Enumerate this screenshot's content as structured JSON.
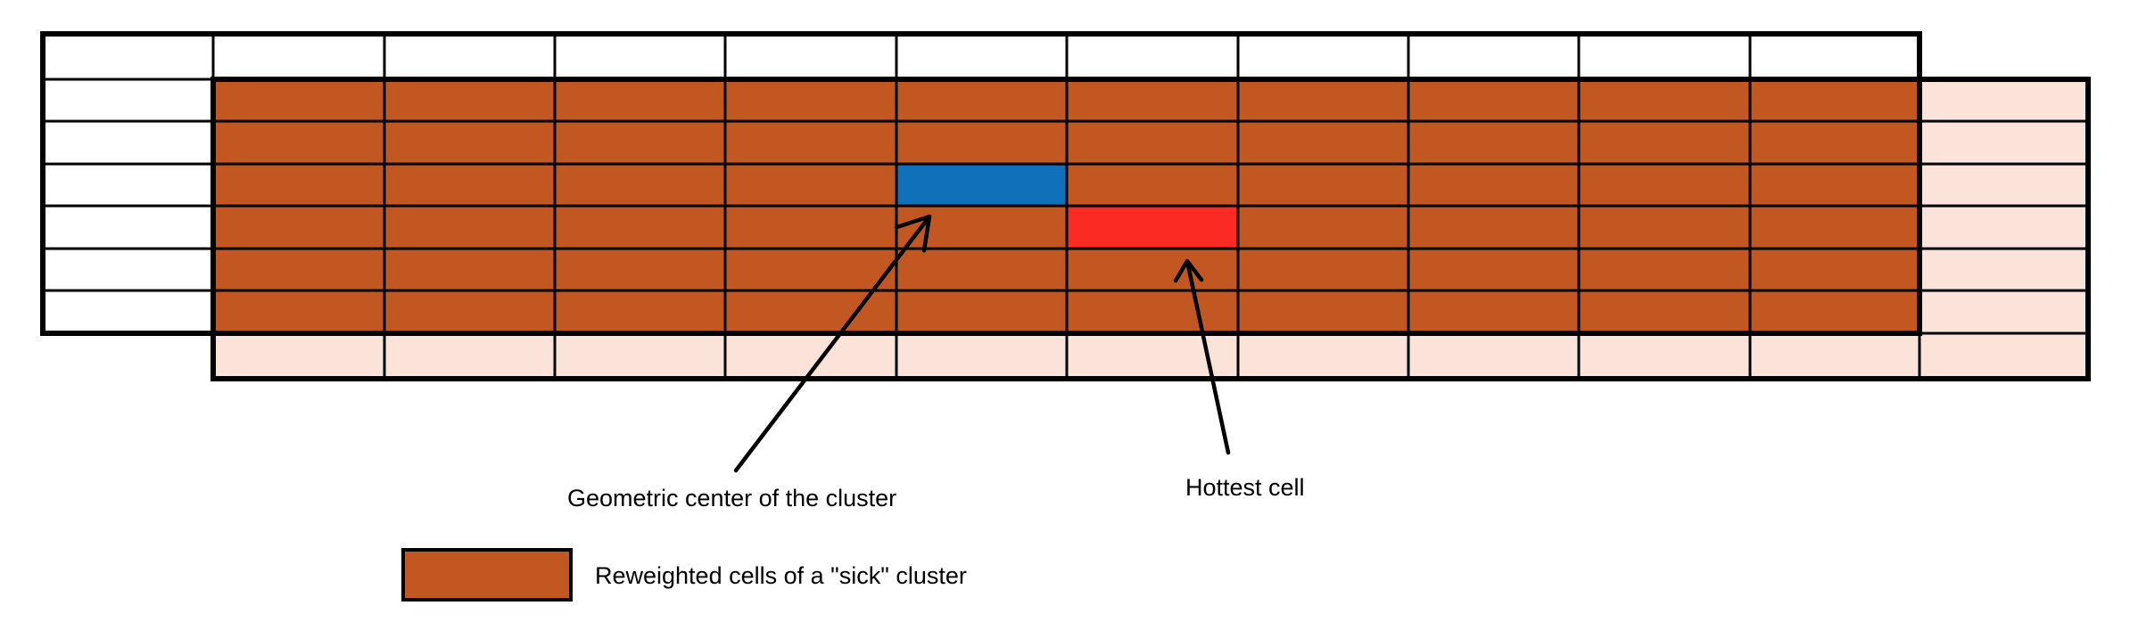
{
  "annotations": {
    "geometric_center": "Geometric center of the cluster",
    "hottest_cell": "Hottest cell"
  },
  "legend": {
    "label": "Reweighted cells of a \"sick\" cluster",
    "swatch_color": "#c25722"
  },
  "grid": {
    "columns": 12,
    "rows": 8,
    "reweighted_color": "#c25722",
    "extension_color": "#fbe3da",
    "empty_color": "#ffffff",
    "geometric_center_color": "#1170ba",
    "hottest_cell_color": "#fb2a22",
    "geometric_center_cell": {
      "row": 3,
      "col": 5
    },
    "hottest_cell": {
      "row": 4,
      "col": 6
    }
  }
}
